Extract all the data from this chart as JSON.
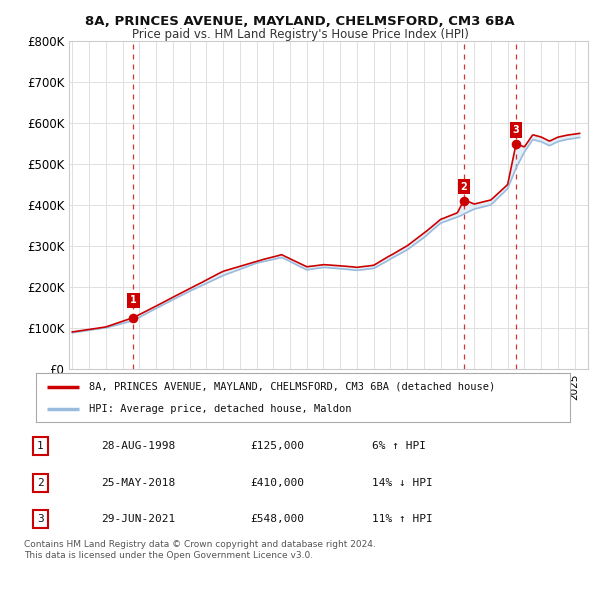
{
  "title": "8A, PRINCES AVENUE, MAYLAND, CHELMSFORD, CM3 6BA",
  "subtitle": "Price paid vs. HM Land Registry's House Price Index (HPI)",
  "ylim": [
    0,
    800000
  ],
  "yticks": [
    0,
    100000,
    200000,
    300000,
    400000,
    500000,
    600000,
    700000,
    800000
  ],
  "ytick_labels": [
    "£0",
    "£100K",
    "£200K",
    "£300K",
    "£400K",
    "£500K",
    "£600K",
    "£700K",
    "£800K"
  ],
  "xlim_start": 1994.8,
  "xlim_end": 2025.8,
  "line1_color": "#cc0000",
  "line2_color": "#99bbdd",
  "fill_color": "#c8dff0",
  "transaction_color": "#cc0000",
  "vline_color": "#cc0000",
  "legend_line1": "8A, PRINCES AVENUE, MAYLAND, CHELMSFORD, CM3 6BA (detached house)",
  "legend_line2": "HPI: Average price, detached house, Maldon",
  "transactions": [
    {
      "num": 1,
      "date": "28-AUG-1998",
      "price": 125000,
      "pct": "6%",
      "dir": "↑",
      "year": 1998.65
    },
    {
      "num": 2,
      "date": "25-MAY-2018",
      "price": 410000,
      "pct": "14%",
      "dir": "↓",
      "year": 2018.4
    },
    {
      "num": 3,
      "date": "29-JUN-2021",
      "price": 548000,
      "pct": "11%",
      "dir": "↑",
      "year": 2021.5
    }
  ],
  "footnote1": "Contains HM Land Registry data © Crown copyright and database right 2024.",
  "footnote2": "This data is licensed under the Open Government Licence v3.0.",
  "background_color": "#ffffff",
  "grid_color": "#e0e0e0"
}
